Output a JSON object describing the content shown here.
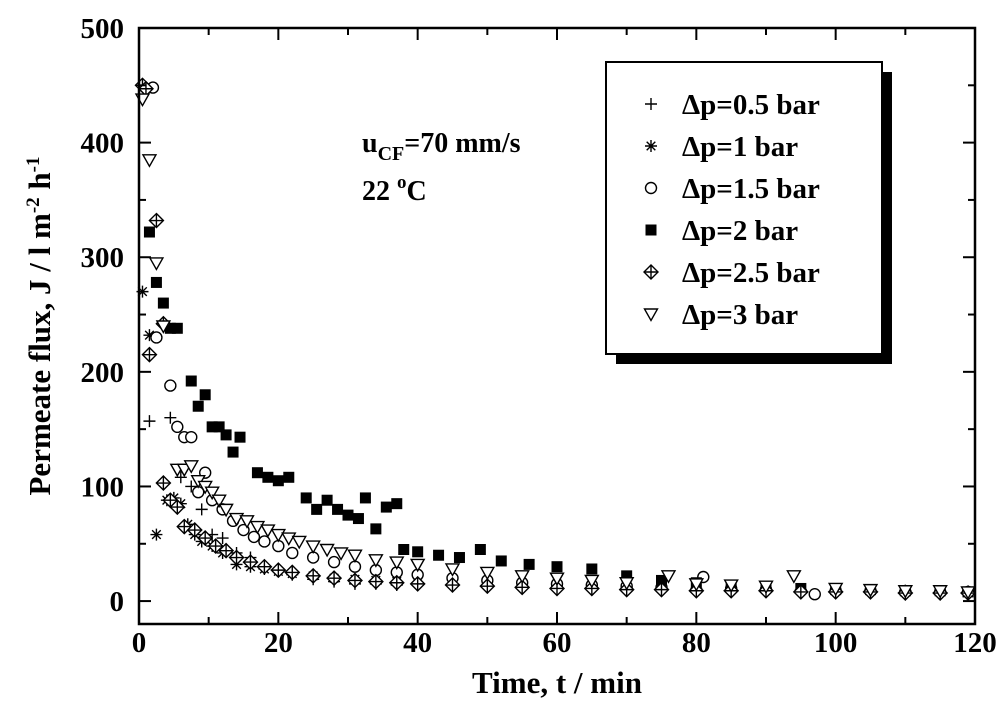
{
  "chart_data": {
    "type": "scatter",
    "title": "",
    "xlabel": "Time, t  /  min",
    "ylabel_parts": {
      "main": "Permeate flux, J  /  l m",
      "sup1": "-2",
      "mid": " h",
      "sup2": "-1"
    },
    "xlim": [
      0,
      120
    ],
    "ylim": [
      -20,
      500
    ],
    "xticks": [
      0,
      20,
      40,
      60,
      80,
      100,
      120
    ],
    "yticks": [
      0,
      100,
      200,
      300,
      400,
      500
    ],
    "grid": false,
    "legend_position": "top-right",
    "annotations": {
      "velocity": {
        "u": "u",
        "sub": "CF",
        "rest": "=70 mm/s"
      },
      "temperature": {
        "num": "22 ",
        "sup": "o",
        "unit": "C"
      }
    },
    "series": [
      {
        "name": "Δp=0.5 bar",
        "marker": "plus",
        "x": [
          1.5,
          4.5,
          6,
          7.5,
          9,
          10.5,
          12,
          14,
          16,
          18,
          20,
          22,
          25,
          28,
          31,
          34,
          37,
          40,
          45,
          50,
          55,
          60,
          65,
          70,
          75,
          80,
          85,
          90,
          95,
          100,
          105,
          110,
          115,
          119
        ],
        "y": [
          157,
          160,
          108,
          100,
          80,
          58,
          55,
          42,
          38,
          30,
          27,
          23,
          19,
          17,
          15,
          15,
          14,
          14,
          13,
          13,
          12,
          12,
          11,
          11,
          11,
          10,
          10,
          10,
          9,
          9,
          9,
          9,
          8,
          8
        ]
      },
      {
        "name": "Δp=1 bar",
        "marker": "asterisk",
        "x": [
          0.5,
          1.5,
          2.5,
          4,
          5,
          6,
          7,
          8,
          9,
          10.5,
          12,
          14,
          16,
          18,
          20,
          22,
          25,
          28,
          31,
          34,
          37,
          40,
          45,
          50,
          55,
          60,
          65,
          70,
          75,
          80,
          85,
          90,
          95,
          100,
          105,
          110,
          115,
          119
        ],
        "y": [
          270,
          232,
          58,
          88,
          90,
          85,
          67,
          58,
          52,
          48,
          42,
          32,
          30,
          28,
          26,
          24,
          22,
          20,
          19,
          18,
          17,
          16,
          15,
          14,
          13,
          13,
          12,
          12,
          11,
          11,
          10,
          10,
          10,
          9,
          9,
          9,
          8,
          8
        ]
      },
      {
        "name": "Δp=1.5 bar",
        "marker": "circle",
        "x": [
          2,
          2.5,
          4.5,
          5.5,
          6.5,
          7.5,
          8.5,
          9.5,
          10.5,
          12,
          13.5,
          15,
          16.5,
          18,
          20,
          22,
          25,
          28,
          31,
          34,
          37,
          40,
          45,
          50,
          55,
          60,
          65,
          70,
          75,
          81,
          85,
          90,
          97,
          100,
          105,
          110,
          115,
          119
        ],
        "y": [
          448,
          230,
          188,
          152,
          143,
          143,
          95,
          112,
          88,
          80,
          70,
          62,
          56,
          52,
          48,
          42,
          38,
          34,
          30,
          27,
          25,
          23,
          20,
          18,
          16,
          15,
          14,
          13,
          12,
          21,
          11,
          10,
          6,
          9,
          9,
          8,
          8,
          8
        ]
      },
      {
        "name": "Δp=2 bar",
        "marker": "square",
        "x": [
          1.5,
          2.5,
          3.5,
          4.5,
          5.5,
          7.5,
          8.5,
          9.5,
          10.5,
          11.5,
          12.5,
          13.5,
          14.5,
          17,
          18.5,
          20,
          21.5,
          24,
          25.5,
          27,
          28.5,
          30,
          31.5,
          32.5,
          34,
          35.5,
          37,
          38,
          40,
          43,
          46,
          49,
          52,
          56,
          60,
          65,
          70,
          75,
          80,
          85,
          90,
          95,
          100,
          105,
          110,
          115,
          119
        ],
        "y": [
          322,
          278,
          260,
          238,
          238,
          192,
          170,
          180,
          152,
          152,
          145,
          130,
          143,
          112,
          108,
          105,
          108,
          90,
          80,
          88,
          80,
          75,
          72,
          90,
          63,
          82,
          85,
          45,
          43,
          40,
          38,
          45,
          35,
          32,
          30,
          28,
          22,
          18,
          16,
          14,
          12,
          11,
          10,
          10,
          9,
          9,
          8
        ]
      },
      {
        "name": "Δp=2.5 bar",
        "marker": "diamond-cross",
        "x": [
          0.5,
          1,
          1.5,
          2.5,
          3.5,
          3.5,
          4.5,
          5.5,
          6.5,
          8,
          9.5,
          11,
          12.5,
          14,
          16,
          18,
          20,
          22,
          25,
          28,
          31,
          34,
          37,
          40,
          45,
          50,
          55,
          60,
          65,
          70,
          75,
          80,
          85,
          90,
          95,
          100,
          105,
          110,
          115,
          119
        ],
        "y": [
          450,
          447,
          215,
          332,
          103,
          242,
          88,
          82,
          65,
          62,
          55,
          48,
          44,
          38,
          34,
          30,
          27,
          25,
          22,
          20,
          18,
          17,
          16,
          15,
          14,
          13,
          12,
          11,
          11,
          10,
          10,
          9,
          9,
          9,
          8,
          8,
          8,
          7,
          7,
          7
        ]
      },
      {
        "name": "Δp=3 bar",
        "marker": "triangle-down",
        "x": [
          0.5,
          1.5,
          2.5,
          3.5,
          5.5,
          6.5,
          7.5,
          8.5,
          9.5,
          10.5,
          11.5,
          12.5,
          14,
          15.5,
          17,
          18.5,
          20,
          21.5,
          23,
          25,
          27,
          29,
          31,
          34,
          37,
          40,
          45,
          50,
          55,
          60,
          65,
          70,
          76,
          80,
          85,
          90,
          94,
          100,
          105,
          110,
          115,
          119
        ],
        "y": [
          438,
          385,
          295,
          240,
          115,
          115,
          118,
          105,
          100,
          95,
          88,
          80,
          72,
          70,
          65,
          62,
          58,
          55,
          52,
          48,
          45,
          42,
          40,
          36,
          34,
          32,
          28,
          25,
          22,
          20,
          18,
          16,
          22,
          15,
          14,
          13,
          22,
          11,
          10,
          9,
          9,
          8
        ]
      }
    ]
  }
}
